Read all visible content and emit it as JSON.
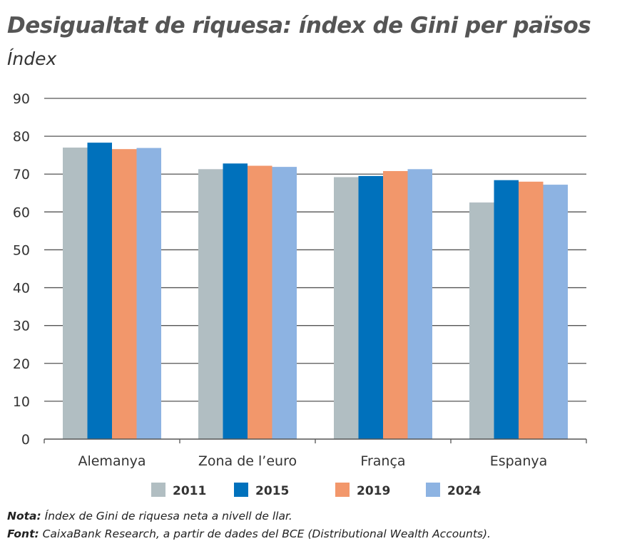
{
  "title": "Desigualtat de riquesa: índex de Gini per països",
  "subtitle": "Índex",
  "chart_data": {
    "type": "bar",
    "title": "Desigualtat de riquesa: índex de Gini per països",
    "ylabel": "Índex",
    "categories": [
      "Alemanya",
      "Zona de l’euro",
      "França",
      "Espanya"
    ],
    "series": [
      {
        "name": "2011",
        "color": "#b1bec2",
        "values": [
          77.0,
          71.3,
          69.2,
          62.5
        ]
      },
      {
        "name": "2015",
        "color": "#0071bc",
        "values": [
          78.3,
          72.8,
          69.5,
          68.4
        ]
      },
      {
        "name": "2019",
        "color": "#f2976b",
        "values": [
          76.6,
          72.2,
          70.8,
          68.0
        ]
      },
      {
        "name": "2024",
        "color": "#8db3e2",
        "values": [
          76.9,
          71.9,
          71.3,
          67.2
        ]
      }
    ],
    "ylim": [
      0,
      90
    ],
    "yticks": [
      0,
      10,
      20,
      30,
      40,
      50,
      60,
      70,
      80,
      90
    ],
    "grid": true,
    "legend": "bottom"
  },
  "notes": {
    "nota_label": "Nota:",
    "nota_text": " Índex de Gini de riquesa neta a nivell de llar.",
    "font_label": "Font:",
    "font_text": " CaixaBank Research, a partir de dades del BCE (Distributional Wealth Accounts)."
  }
}
